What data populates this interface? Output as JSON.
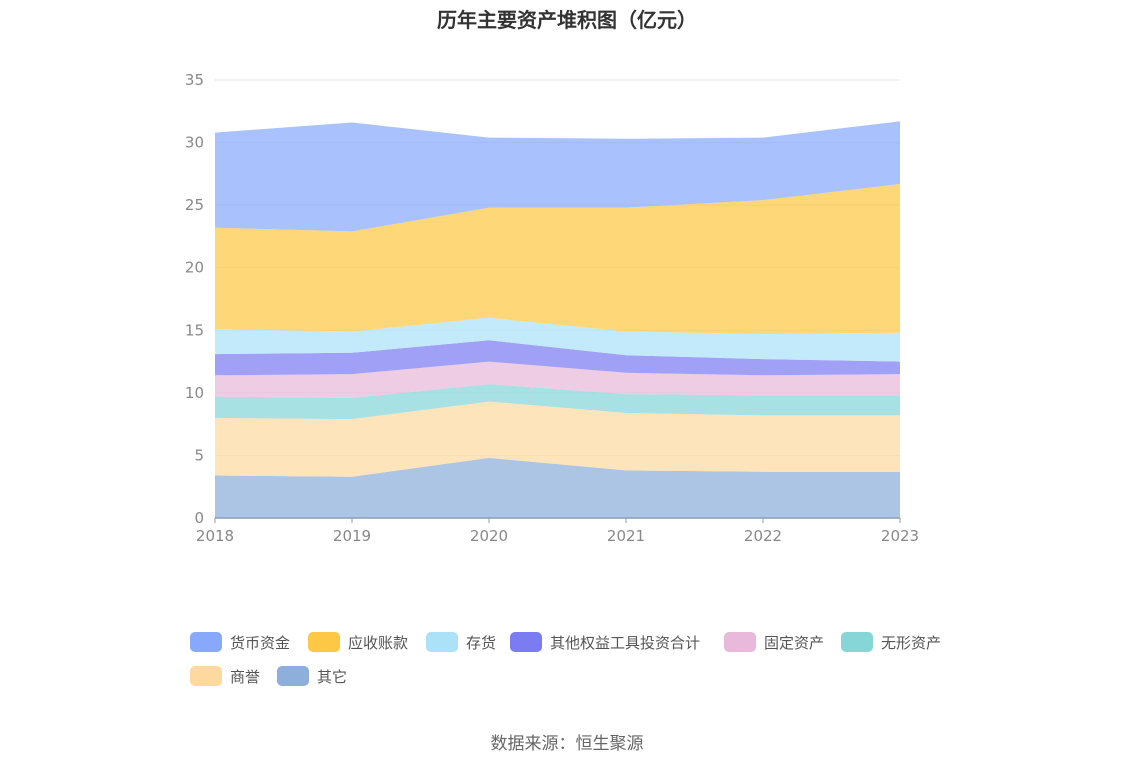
{
  "chart_data": {
    "type": "area",
    "stacked": true,
    "title": "历年主要资产堆积图（亿元）",
    "xlabel": "",
    "ylabel": "",
    "categories": [
      "2018",
      "2019",
      "2020",
      "2021",
      "2022",
      "2023"
    ],
    "ylim": [
      0,
      35
    ],
    "yticks": [
      0,
      5,
      10,
      15,
      20,
      25,
      30,
      35
    ],
    "grid": true,
    "legend_position": "bottom",
    "series": [
      {
        "name": "其它",
        "color": "#8eaedb",
        "values": [
          3.4,
          3.3,
          4.8,
          3.8,
          3.7,
          3.7
        ]
      },
      {
        "name": "商誉",
        "color": "#fdd9a0",
        "values": [
          4.6,
          4.6,
          4.5,
          4.6,
          4.5,
          4.5
        ]
      },
      {
        "name": "无形资产",
        "color": "#86d6d8",
        "values": [
          1.7,
          1.7,
          1.4,
          1.5,
          1.6,
          1.6
        ]
      },
      {
        "name": "固定资产",
        "color": "#e8b9da",
        "values": [
          1.7,
          1.9,
          1.8,
          1.7,
          1.6,
          1.7
        ]
      },
      {
        "name": "其他权益工具投资合计",
        "color": "#7b7cf2",
        "values": [
          1.7,
          1.7,
          1.7,
          1.4,
          1.3,
          1.0
        ]
      },
      {
        "name": "存货",
        "color": "#ace2f8",
        "values": [
          2.0,
          1.7,
          1.8,
          1.9,
          2.0,
          2.3
        ]
      },
      {
        "name": "应收账款",
        "color": "#fdc845",
        "values": [
          8.1,
          8.0,
          8.8,
          9.9,
          10.7,
          11.9
        ]
      },
      {
        "name": "货币资金",
        "color": "#88a9fb",
        "values": [
          7.6,
          8.7,
          5.6,
          5.5,
          5.0,
          5.0
        ]
      }
    ],
    "legend_order": [
      "货币资金",
      "应收账款",
      "存货",
      "其他权益工具投资合计",
      "固定资产",
      "无形资产",
      "商誉",
      "其它"
    ]
  },
  "source_note": "数据来源：恒生聚源"
}
